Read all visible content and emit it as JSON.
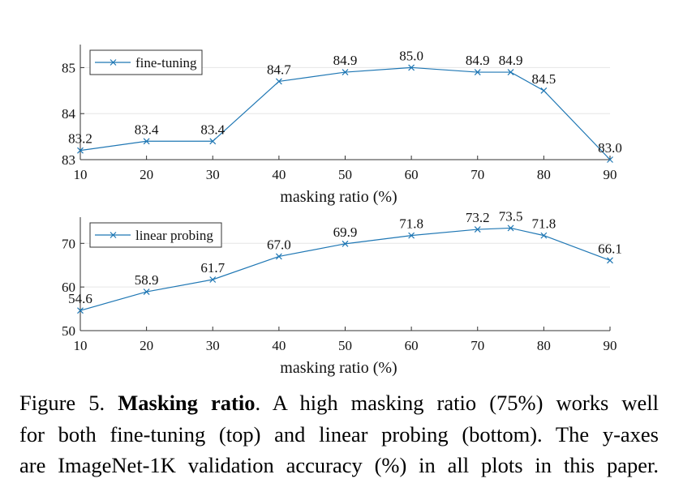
{
  "chart_data": [
    {
      "type": "line",
      "x": [
        10,
        20,
        30,
        40,
        50,
        60,
        70,
        75,
        80,
        90
      ],
      "series": [
        {
          "name": "fine-tuning",
          "values": [
            83.2,
            83.4,
            83.4,
            84.7,
            84.9,
            85.0,
            84.9,
            84.9,
            84.5,
            83.0
          ]
        }
      ],
      "data_labels": [
        "83.2",
        "83.4",
        "83.4",
        "84.7",
        "84.9",
        "85.0",
        "84.9",
        "84.9",
        "84.5",
        "83.0"
      ],
      "xlabel": "masking ratio (%)",
      "ylabel": "",
      "xlim": [
        10,
        90
      ],
      "ylim": [
        83,
        85.5
      ],
      "xticks": [
        "10",
        "20",
        "30",
        "40",
        "50",
        "60",
        "70",
        "80",
        "90"
      ],
      "yticks": [
        "83",
        "84",
        "85"
      ],
      "grid": true,
      "legend": "top-left",
      "color": "#1f77b4"
    },
    {
      "type": "line",
      "x": [
        10,
        20,
        30,
        40,
        50,
        60,
        70,
        75,
        80,
        90
      ],
      "series": [
        {
          "name": "linear probing",
          "values": [
            54.6,
            58.9,
            61.7,
            67.0,
            69.9,
            71.8,
            73.2,
            73.5,
            71.8,
            66.1
          ]
        }
      ],
      "data_labels": [
        "54.6",
        "58.9",
        "61.7",
        "67.0",
        "69.9",
        "71.8",
        "73.2",
        "73.5",
        "71.8",
        "66.1"
      ],
      "xlabel": "masking ratio (%)",
      "ylabel": "",
      "xlim": [
        10,
        90
      ],
      "ylim": [
        50,
        76
      ],
      "xticks": [
        "10",
        "20",
        "30",
        "40",
        "50",
        "60",
        "70",
        "80",
        "90"
      ],
      "yticks": [
        "50",
        "60",
        "70"
      ],
      "grid": true,
      "legend": "top-left",
      "color": "#1f77b4"
    }
  ],
  "caption": {
    "figure_label": "Figure 5.",
    "bold_title": "Masking ratio",
    "line1_rest": ". A high masking ratio (75%) works well",
    "line2": "for both fine-tuning (top) and linear probing (bottom). The y-axes",
    "line3": "are ImageNet-1K validation accuracy (%) in all plots in this paper."
  }
}
